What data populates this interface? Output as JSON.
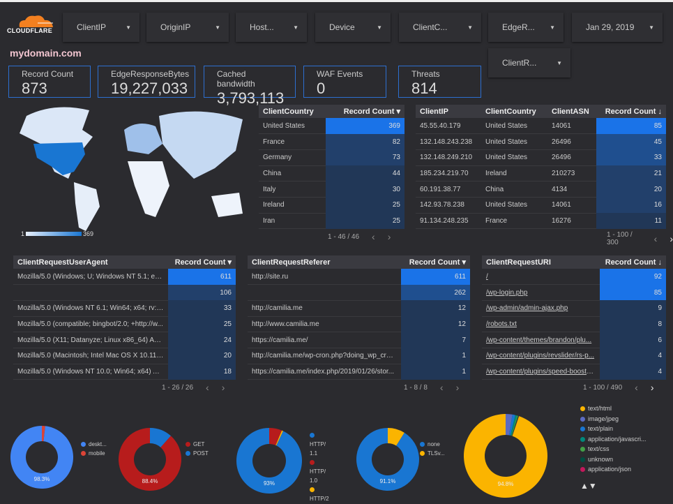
{
  "brand": {
    "name": "CLOUDFLARE",
    "color": "#f38020"
  },
  "filters": [
    {
      "label": "ClientIP"
    },
    {
      "label": "OriginIP"
    },
    {
      "label": "Host..."
    },
    {
      "label": "Device"
    },
    {
      "label": "ClientC..."
    },
    {
      "label": "EdgeR..."
    },
    {
      "label": "Jan 29, 2019"
    },
    {
      "label": "ClientR..."
    }
  ],
  "title": "mydomain.com",
  "kpis": [
    {
      "label": "Record Count",
      "value": "873"
    },
    {
      "label": "EdgeResponseBytes",
      "value": "19,227,033"
    },
    {
      "label": "Cached bandwidth",
      "value": "3,793,113"
    },
    {
      "label": "WAF Events",
      "value": "0"
    },
    {
      "label": "Threats",
      "value": "814"
    }
  ],
  "map": {
    "legend_min": "1",
    "legend_max": "369"
  },
  "accent": "#1a73e8",
  "tables": [
    {
      "columns": [
        "ClientCountry",
        "Record Count ▾"
      ],
      "rows": [
        [
          "United States",
          "369"
        ],
        [
          "France",
          "82"
        ],
        [
          "Germany",
          "73"
        ],
        [
          "China",
          "44"
        ],
        [
          "Italy",
          "30"
        ],
        [
          "Ireland",
          "25"
        ],
        [
          "Iran",
          "25"
        ]
      ],
      "pagination": "1 - 46 / 46"
    },
    {
      "columns": [
        "ClientIP",
        "ClientCountry",
        "ClientASN",
        "Record Count ↓"
      ],
      "rows": [
        [
          "45.55.40.179",
          "United States",
          "14061",
          "85"
        ],
        [
          "132.148.243.238",
          "United States",
          "26496",
          "45"
        ],
        [
          "132.148.249.210",
          "United States",
          "26496",
          "33"
        ],
        [
          "185.234.219.70",
          "Ireland",
          "210273",
          "21"
        ],
        [
          "60.191.38.77",
          "China",
          "4134",
          "20"
        ],
        [
          "142.93.78.238",
          "United States",
          "14061",
          "16"
        ],
        [
          "91.134.248.235",
          "France",
          "16276",
          "11"
        ]
      ],
      "pagination": "1 - 100 / 300"
    },
    {
      "columns": [
        "ClientRequestUserAgent",
        "Record Count ▾"
      ],
      "rows": [
        [
          "Mozilla/5.0 (Windows; U; Windows NT 5.1; en-U...",
          "611"
        ],
        [
          "",
          "106"
        ],
        [
          "Mozilla/5.0 (Windows NT 6.1; Win64; x64; rv:64....",
          "33"
        ],
        [
          "Mozilla/5.0 (compatible; bingbot/2.0; +http://w...",
          "25"
        ],
        [
          "Mozilla/5.0 (X11; Datanyze; Linux x86_64) Appl...",
          "24"
        ],
        [
          "Mozilla/5.0 (Macintosh; Intel Mac OS X 10.11; r...",
          "20"
        ],
        [
          "Mozilla/5.0 (Windows NT 10.0; Win64; x64) App...",
          "18"
        ]
      ],
      "pagination": "1 - 26 / 26"
    },
    {
      "columns": [
        "ClientRequestReferer",
        "Record Count ▾"
      ],
      "rows": [
        [
          "http://site.ru",
          "611"
        ],
        [
          "",
          "262"
        ],
        [
          "http://camilia.me",
          "12"
        ],
        [
          "http://www.camilia.me",
          "12"
        ],
        [
          "https://camilia.me/",
          "7"
        ],
        [
          "http://camilia.me/wp-cron.php?doing_wp_cron...",
          "1"
        ],
        [
          "https://camilia.me/index.php/2019/01/26/stor...",
          "1"
        ]
      ],
      "pagination": "1 - 8 / 8"
    },
    {
      "columns": [
        "ClientRequestURI",
        "Record Count ↓"
      ],
      "rows": [
        [
          "/",
          "92"
        ],
        [
          "/wp-login.php",
          "85"
        ],
        [
          "/wp-admin/admin-ajax.php",
          "9"
        ],
        [
          "/robots.txt",
          "8"
        ],
        [
          "/wp-content/themes/brandon/plu...",
          "6"
        ],
        [
          "/wp-content/plugins/revslider/rs-p...",
          "4"
        ],
        [
          "/wp-content/plugins/speed-booste...",
          "4"
        ]
      ],
      "pagination": "1 - 100 / 490"
    }
  ],
  "donuts": [
    {
      "label": "98.3%",
      "slices": [
        {
          "name": "deskt...",
          "value": 98.3,
          "color": "#4285f4"
        },
        {
          "name": "mobile",
          "value": 1.7,
          "color": "#db4437"
        }
      ]
    },
    {
      "label": "88.4%",
      "slices": [
        {
          "name": "GET",
          "value": 88.4,
          "color": "#b71c1c"
        },
        {
          "name": "POST",
          "value": 11.6,
          "color": "#1976d2"
        }
      ]
    },
    {
      "label": "93%",
      "slices": [
        {
          "name": "HTTP/ 1.1",
          "value": 93,
          "color": "#1976d2"
        },
        {
          "name": "HTTP/ 1.0",
          "value": 6.3,
          "color": "#b71c1c"
        },
        {
          "name": "HTTP/2",
          "value": 0.7,
          "color": "#fbb400"
        }
      ]
    },
    {
      "label": "91.1%",
      "slices": [
        {
          "name": "none",
          "value": 91.1,
          "color": "#1976d2"
        },
        {
          "name": "TLSv...",
          "value": 8.9,
          "color": "#fbb400"
        }
      ]
    },
    {
      "label": "94.8%",
      "slices": [
        {
          "name": "text/html",
          "value": 94.8,
          "color": "#fbb400"
        },
        {
          "name": "image/jpeg",
          "value": 2.6,
          "color": "#5c6bc0"
        },
        {
          "name": "text/plain",
          "value": 1.1,
          "color": "#1976d2"
        },
        {
          "name": "application/javascri...",
          "value": 0.7,
          "color": "#00897b"
        },
        {
          "name": "text/css",
          "value": 0.4,
          "color": "#43a047"
        },
        {
          "name": "unknown",
          "value": 0.3,
          "color": "#004d40"
        },
        {
          "name": "application/json",
          "value": 0.1,
          "color": "#c2185b"
        }
      ]
    }
  ],
  "legend_pager": "▲▼"
}
